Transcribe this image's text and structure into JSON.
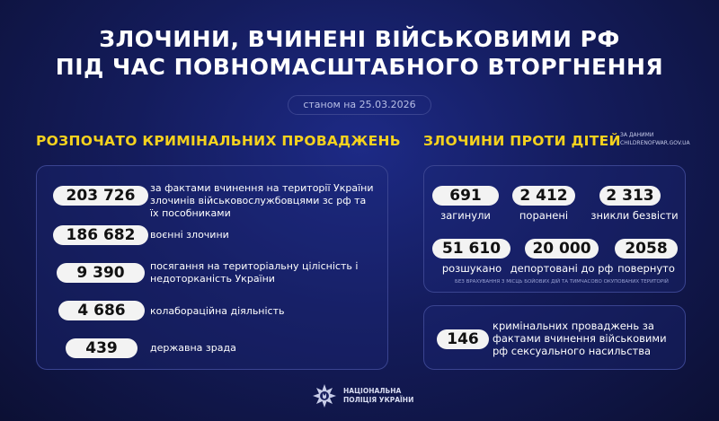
{
  "title": {
    "line1": "ЗЛОЧИНИ, ВЧИНЕНІ ВІЙСЬКОВИМИ РФ",
    "line2": "ПІД ЧАС ПОВНОМАСШТАБНОГО ВТОРГНЕННЯ"
  },
  "date": "станом на 25.03.2026",
  "left": {
    "heading": "РОЗПОЧАТО КРИМІНАЛЬНИХ ПРОВАДЖЕНЬ",
    "items": [
      {
        "value": "203 726",
        "label": "за фактами вчинення на території України злочинів військовослужбовцями зс рф та їх пособниками"
      },
      {
        "value": "186 682",
        "label": "воєнні злочини"
      },
      {
        "value": "9 390",
        "label": "посягання на територіальну цілісність і недоторканість України"
      },
      {
        "value": "4 686",
        "label": "колабораційна діяльність"
      },
      {
        "value": "439",
        "label": "державна зрада"
      }
    ]
  },
  "right": {
    "heading": "ЗЛОЧИНИ ПРОТИ ДІТЕЙ",
    "source_line1": "за даними",
    "source_line2": "childrenofwar.gov.ua",
    "stats": [
      {
        "value": "691",
        "label": "загинули"
      },
      {
        "value": "2 412",
        "label": "поранені"
      },
      {
        "value": "2 313",
        "label": "зникли безвісти"
      },
      {
        "value": "51 610",
        "label": "розшукано"
      },
      {
        "value": "20 000",
        "label": "депортовані до рф"
      },
      {
        "value": "2058",
        "label": "повернуто"
      }
    ],
    "note": "без врахування з місць бойових дій та тимчасово окупованих територій",
    "sexual": {
      "value": "146",
      "label": "кримінальних проваджень за фактами вчинення військовими рф сексуального насильства"
    }
  },
  "footer": {
    "line1": "НАЦІОНАЛЬНА",
    "line2": "ПОЛІЦІЯ УКРАЇНИ"
  },
  "colors": {
    "accent": "#f5d21e",
    "background": "#141c5c"
  }
}
